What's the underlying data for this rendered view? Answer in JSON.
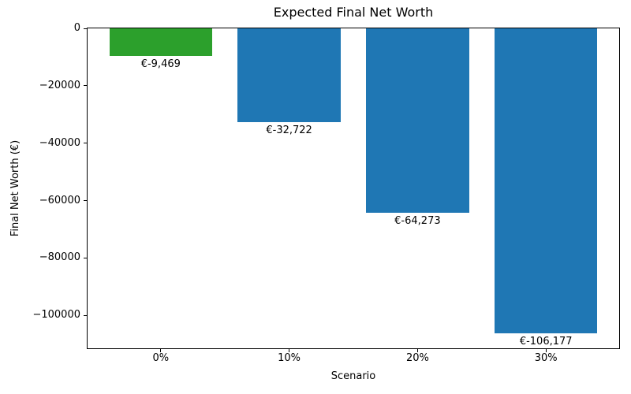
{
  "chart_data": {
    "type": "bar",
    "title": "Expected Final Net Worth",
    "xlabel": "Scenario",
    "ylabel": "Final Net Worth (€)",
    "categories": [
      "0%",
      "10%",
      "20%",
      "30%"
    ],
    "values": [
      -9469,
      -32722,
      -64273,
      -106177
    ],
    "bar_labels": [
      "€-9,469",
      "€-32,722",
      "€-64,273",
      "€-106,177"
    ],
    "bar_colors": [
      "#2ca02c",
      "#1f77b4",
      "#1f77b4",
      "#1f77b4"
    ],
    "bar_width": 0.8,
    "xlim": [
      -0.57,
      3.57
    ],
    "ylim": [
      -111486,
      0
    ],
    "yticks": [
      {
        "value": 0,
        "label": "0"
      },
      {
        "value": -20000,
        "label": "−20000"
      },
      {
        "value": -40000,
        "label": "−40000"
      },
      {
        "value": -60000,
        "label": "−60000"
      },
      {
        "value": -80000,
        "label": "−80000"
      },
      {
        "value": -100000,
        "label": "−100000"
      }
    ],
    "grid": false,
    "legend": "none",
    "colors": {
      "highlight_bar": "#2ca02c",
      "default_bar": "#1f77b4",
      "axis": "#000000",
      "background": "#ffffff"
    }
  }
}
